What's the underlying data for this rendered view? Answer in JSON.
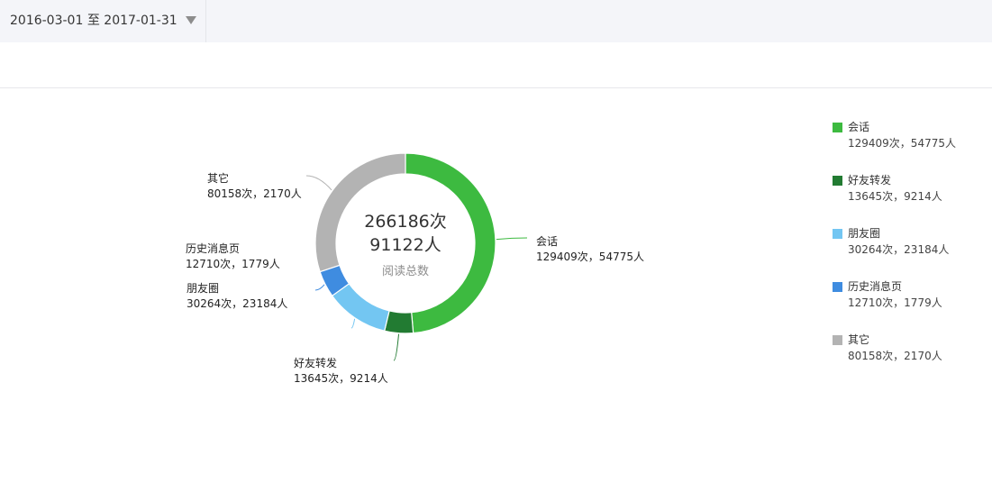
{
  "header": {
    "date_start": "2016-03-01",
    "date_sep": "至",
    "date_end": "2017-01-31",
    "caret_icon": "triangle-down-icon"
  },
  "chart_data": {
    "type": "pie",
    "variant": "donut",
    "center": {
      "total_times": "266186次",
      "total_people": "91122人",
      "caption": "阅读总数"
    },
    "unit_times": "次",
    "unit_people": "人",
    "slices": [
      {
        "name": "会话",
        "times": 129409,
        "people": 54775,
        "color": "#3dba40",
        "value_text": "129409次，54775人"
      },
      {
        "name": "好友转发",
        "times": 13645,
        "people": 9214,
        "color": "#227b32",
        "value_text": "13645次，9214人"
      },
      {
        "name": "朋友圈",
        "times": 30264,
        "people": 23184,
        "color": "#73c6f2",
        "value_text": "30264次，23184人"
      },
      {
        "name": "历史消息页",
        "times": 12710,
        "people": 1779,
        "color": "#3f8ce0",
        "value_text": "12710次，1779人"
      },
      {
        "name": "其它",
        "times": 80158,
        "people": 2170,
        "color": "#b3b3b3",
        "value_text": "80158次，2170人"
      }
    ],
    "legend_position": "right"
  }
}
